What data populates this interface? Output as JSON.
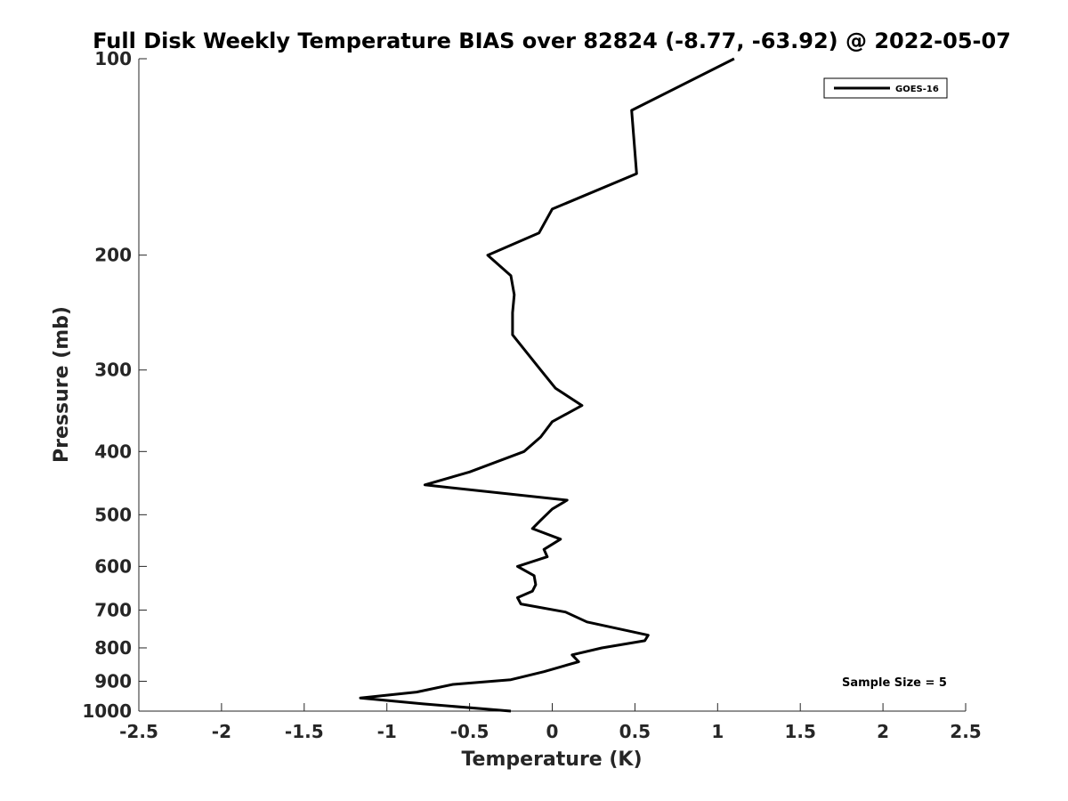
{
  "chart_data": {
    "type": "line",
    "title": "Full Disk Weekly Temperature BIAS over 82824 (-8.77, -63.92) @ 2022-05-07",
    "xlabel": "Temperature (K)",
    "ylabel": "Pressure (mb)",
    "xlim": [
      -2.5,
      2.5
    ],
    "ylim": [
      100,
      1000
    ],
    "y_scale": "log",
    "y_reversed": true,
    "x_ticks": [
      -2.5,
      -2,
      -1.5,
      -1,
      -0.5,
      0,
      0.5,
      1,
      1.5,
      2,
      2.5
    ],
    "x_tick_labels": [
      "-2.5",
      "-2",
      "-1.5",
      "-1",
      "-0.5",
      "0",
      "0.5",
      "1",
      "1.5",
      "2",
      "2.5"
    ],
    "y_ticks": [
      100,
      200,
      300,
      400,
      500,
      600,
      700,
      800,
      900,
      1000
    ],
    "y_tick_labels": [
      "100",
      "200",
      "300",
      "400",
      "500",
      "600",
      "700",
      "800",
      "900",
      "1000"
    ],
    "grid": false,
    "legend_position": "top-right",
    "line_color": "#000000",
    "series": [
      {
        "name": "GOES-16",
        "x": [
          1.1,
          0.48,
          0.51,
          0.0,
          -0.08,
          -0.39,
          -0.25,
          -0.23,
          -0.24,
          -0.24,
          -0.07,
          0.02,
          0.18,
          0.0,
          -0.07,
          -0.17,
          -0.5,
          -0.77,
          0.09,
          0.0,
          -0.07,
          -0.12,
          0.05,
          -0.05,
          -0.03,
          -0.21,
          -0.11,
          -0.1,
          -0.12,
          -0.21,
          -0.19,
          0.08,
          0.21,
          0.58,
          0.56,
          0.3,
          0.12,
          0.16,
          -0.05,
          -0.25,
          -0.6,
          -0.82,
          -1.16,
          -0.78,
          -0.25
        ],
        "y": [
          100,
          120,
          150,
          170,
          185,
          200,
          215,
          230,
          245,
          265,
          300,
          320,
          340,
          360,
          380,
          400,
          430,
          450,
          475,
          490,
          510,
          525,
          545,
          565,
          580,
          600,
          620,
          640,
          655,
          670,
          685,
          705,
          730,
          765,
          780,
          800,
          820,
          840,
          870,
          895,
          910,
          935,
          955,
          975,
          1000
        ]
      }
    ],
    "annotation": "Sample Size = 5"
  }
}
